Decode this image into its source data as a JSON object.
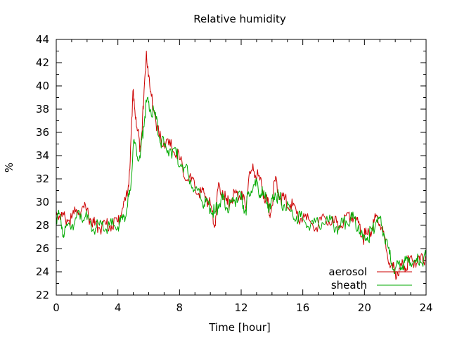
{
  "chart_data": {
    "type": "line",
    "title": "Relative humidity",
    "xlabel": "Time [hour]",
    "ylabel": "%",
    "xlim": [
      0,
      24
    ],
    "ylim": [
      22,
      44
    ],
    "xticks": [
      0,
      4,
      8,
      12,
      16,
      20,
      24
    ],
    "yticks": [
      22,
      24,
      26,
      28,
      30,
      32,
      34,
      36,
      38,
      40,
      42,
      44
    ],
    "grid": false,
    "legend": "bottom-right",
    "series": [
      {
        "name": "aerosol",
        "color": "#cc0000",
        "points": [
          [
            0.0,
            29.2
          ],
          [
            0.3,
            28.8
          ],
          [
            0.6,
            28.5
          ],
          [
            1.0,
            28.6
          ],
          [
            1.4,
            29.3
          ],
          [
            1.8,
            29.5
          ],
          [
            2.2,
            28.6
          ],
          [
            2.5,
            28.0
          ],
          [
            2.8,
            27.8
          ],
          [
            3.2,
            28.1
          ],
          [
            3.6,
            28.0
          ],
          [
            4.0,
            28.3
          ],
          [
            4.3,
            29.5
          ],
          [
            4.6,
            30.5
          ],
          [
            4.8,
            33.5
          ],
          [
            5.0,
            39.7
          ],
          [
            5.2,
            36.5
          ],
          [
            5.45,
            34.8
          ],
          [
            5.65,
            38.0
          ],
          [
            5.85,
            43.0
          ],
          [
            6.1,
            39.5
          ],
          [
            6.4,
            37.5
          ],
          [
            6.7,
            35.5
          ],
          [
            7.0,
            35.2
          ],
          [
            7.4,
            34.8
          ],
          [
            7.8,
            34.2
          ],
          [
            8.2,
            33.0
          ],
          [
            8.6,
            32.0
          ],
          [
            9.0,
            31.2
          ],
          [
            9.4,
            30.8
          ],
          [
            9.7,
            30.5
          ],
          [
            10.0,
            29.8
          ],
          [
            10.3,
            28.0
          ],
          [
            10.5,
            31.2
          ],
          [
            10.8,
            31.0
          ],
          [
            11.1,
            29.8
          ],
          [
            11.4,
            30.3
          ],
          [
            11.7,
            30.8
          ],
          [
            12.0,
            30.5
          ],
          [
            12.3,
            29.5
          ],
          [
            12.5,
            32.2
          ],
          [
            12.8,
            32.7
          ],
          [
            13.1,
            32.3
          ],
          [
            13.4,
            31.0
          ],
          [
            13.7,
            30.0
          ],
          [
            13.9,
            29.0
          ],
          [
            14.2,
            31.8
          ],
          [
            14.5,
            30.5
          ],
          [
            14.8,
            30.2
          ],
          [
            15.2,
            29.8
          ],
          [
            15.6,
            29.0
          ],
          [
            16.0,
            28.5
          ],
          [
            16.5,
            28.3
          ],
          [
            17.0,
            28.0
          ],
          [
            17.5,
            28.5
          ],
          [
            18.0,
            28.2
          ],
          [
            18.4,
            28.0
          ],
          [
            18.8,
            28.8
          ],
          [
            19.2,
            29.0
          ],
          [
            19.6,
            28.2
          ],
          [
            19.9,
            27.0
          ],
          [
            20.2,
            27.2
          ],
          [
            20.5,
            27.8
          ],
          [
            20.8,
            28.8
          ],
          [
            21.1,
            27.8
          ],
          [
            21.4,
            26.0
          ],
          [
            21.7,
            24.5
          ],
          [
            22.0,
            24.0
          ],
          [
            22.3,
            24.3
          ],
          [
            22.6,
            24.5
          ],
          [
            22.9,
            24.8
          ],
          [
            23.3,
            25.0
          ],
          [
            23.6,
            24.8
          ],
          [
            24.0,
            25.4
          ]
        ]
      },
      {
        "name": "sheath",
        "color": "#00aa00",
        "points": [
          [
            0.0,
            28.8
          ],
          [
            0.3,
            28.5
          ],
          [
            0.5,
            27.0
          ],
          [
            0.8,
            28.2
          ],
          [
            1.2,
            28.3
          ],
          [
            1.6,
            29.0
          ],
          [
            2.0,
            28.5
          ],
          [
            2.4,
            27.7
          ],
          [
            2.8,
            28.0
          ],
          [
            3.2,
            27.7
          ],
          [
            3.6,
            28.0
          ],
          [
            4.0,
            27.9
          ],
          [
            4.3,
            28.5
          ],
          [
            4.6,
            29.5
          ],
          [
            4.8,
            31.0
          ],
          [
            5.0,
            35.0
          ],
          [
            5.2,
            34.5
          ],
          [
            5.45,
            33.8
          ],
          [
            5.65,
            36.5
          ],
          [
            5.85,
            38.6
          ],
          [
            6.1,
            38.0
          ],
          [
            6.4,
            37.5
          ],
          [
            6.7,
            35.5
          ],
          [
            7.0,
            34.8
          ],
          [
            7.4,
            34.6
          ],
          [
            7.8,
            34.0
          ],
          [
            8.2,
            33.2
          ],
          [
            8.6,
            32.2
          ],
          [
            9.0,
            31.0
          ],
          [
            9.4,
            30.2
          ],
          [
            9.7,
            30.0
          ],
          [
            10.0,
            29.5
          ],
          [
            10.3,
            29.0
          ],
          [
            10.5,
            29.8
          ],
          [
            10.8,
            30.2
          ],
          [
            11.1,
            29.5
          ],
          [
            11.4,
            30.0
          ],
          [
            11.7,
            30.4
          ],
          [
            12.0,
            30.2
          ],
          [
            12.3,
            29.3
          ],
          [
            12.5,
            30.8
          ],
          [
            12.8,
            31.5
          ],
          [
            13.1,
            31.2
          ],
          [
            13.4,
            30.6
          ],
          [
            13.7,
            30.0
          ],
          [
            13.9,
            29.4
          ],
          [
            14.2,
            30.8
          ],
          [
            14.5,
            30.2
          ],
          [
            14.8,
            29.8
          ],
          [
            15.2,
            29.2
          ],
          [
            15.6,
            28.8
          ],
          [
            16.0,
            28.5
          ],
          [
            16.5,
            28.0
          ],
          [
            17.0,
            28.2
          ],
          [
            17.5,
            28.4
          ],
          [
            18.0,
            28.0
          ],
          [
            18.4,
            27.8
          ],
          [
            18.8,
            28.4
          ],
          [
            19.2,
            28.6
          ],
          [
            19.6,
            28.0
          ],
          [
            19.9,
            26.8
          ],
          [
            20.2,
            27.0
          ],
          [
            20.5,
            27.5
          ],
          [
            20.8,
            28.5
          ],
          [
            21.1,
            28.0
          ],
          [
            21.4,
            26.8
          ],
          [
            21.7,
            25.0
          ],
          [
            22.0,
            24.3
          ],
          [
            22.3,
            24.5
          ],
          [
            22.6,
            24.8
          ],
          [
            22.9,
            25.2
          ],
          [
            23.3,
            24.8
          ],
          [
            23.6,
            25.0
          ],
          [
            24.0,
            25.2
          ]
        ]
      }
    ]
  }
}
